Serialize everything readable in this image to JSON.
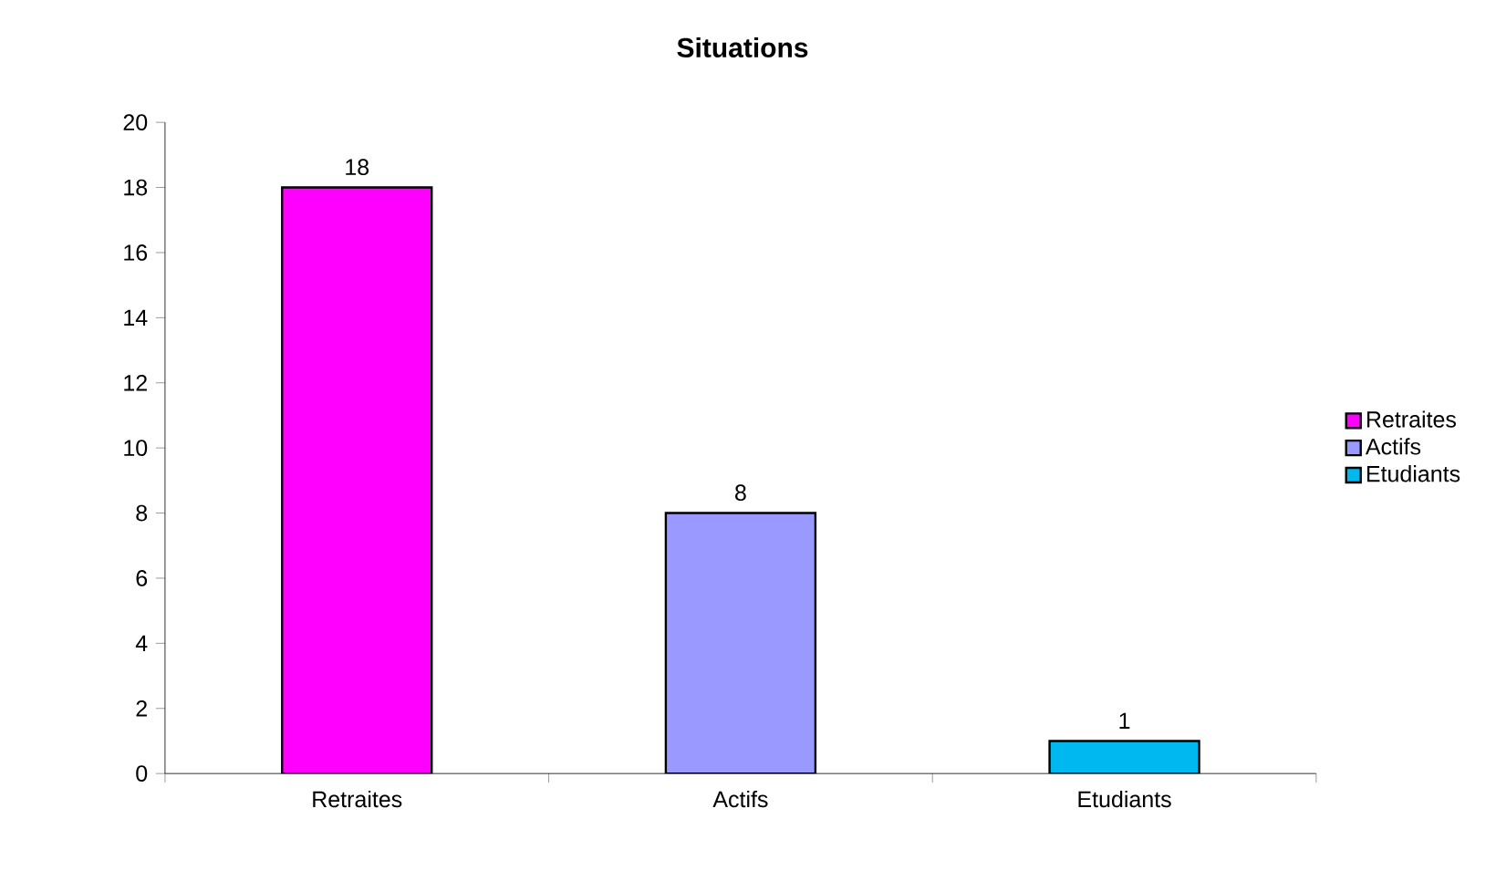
{
  "chart_data": {
    "type": "bar",
    "title": "Situations",
    "categories": [
      "Retraites",
      "Actifs",
      "Etudiants"
    ],
    "series": [
      {
        "name": "Retraites",
        "color": "#ff00ff",
        "values": [
          18,
          null,
          null
        ]
      },
      {
        "name": "Actifs",
        "color": "#9999ff",
        "values": [
          null,
          8,
          null
        ]
      },
      {
        "name": "Etudiants",
        "color": "#00b8f0",
        "values": [
          null,
          null,
          1
        ]
      }
    ],
    "ylim": [
      0,
      20
    ],
    "yticks": [
      0,
      2,
      4,
      6,
      8,
      10,
      12,
      14,
      16,
      18,
      20
    ],
    "data_labels": true,
    "grid": false,
    "legend": "right"
  }
}
